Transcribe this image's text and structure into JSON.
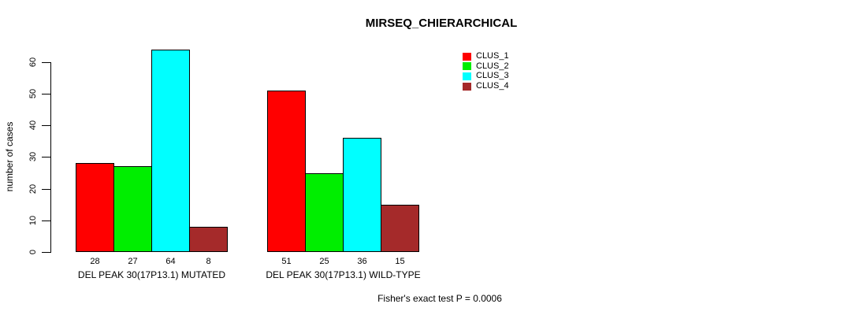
{
  "chart_data": {
    "type": "bar",
    "title": "MIRSEQ_CHIERARCHICAL",
    "ylabel": "number of cases",
    "xlabel": "",
    "ylim": [
      0,
      64
    ],
    "yticks": [
      0,
      10,
      20,
      30,
      40,
      50,
      60
    ],
    "grid": false,
    "legend_position": "top-right",
    "categories": [
      "DEL PEAK 30(17P13.1) MUTATED",
      "DEL PEAK 30(17P13.1) WILD-TYPE"
    ],
    "series": [
      {
        "name": "CLUS_1",
        "color": "#FF0000",
        "values": [
          28,
          51
        ]
      },
      {
        "name": "CLUS_2",
        "color": "#00EE00",
        "values": [
          27,
          25
        ]
      },
      {
        "name": "CLUS_3",
        "color": "#00FFFF",
        "values": [
          64,
          36
        ]
      },
      {
        "name": "CLUS_4",
        "color": "#A52A2A",
        "values": [
          8,
          15
        ]
      }
    ],
    "bar_value_labels": [
      [
        28,
        27,
        64,
        8
      ],
      [
        51,
        25,
        36,
        15
      ]
    ],
    "annotation": "Fisher's exact test P = 0.0006"
  },
  "colors": {
    "foreground": "#000000",
    "background": "#ffffff"
  }
}
